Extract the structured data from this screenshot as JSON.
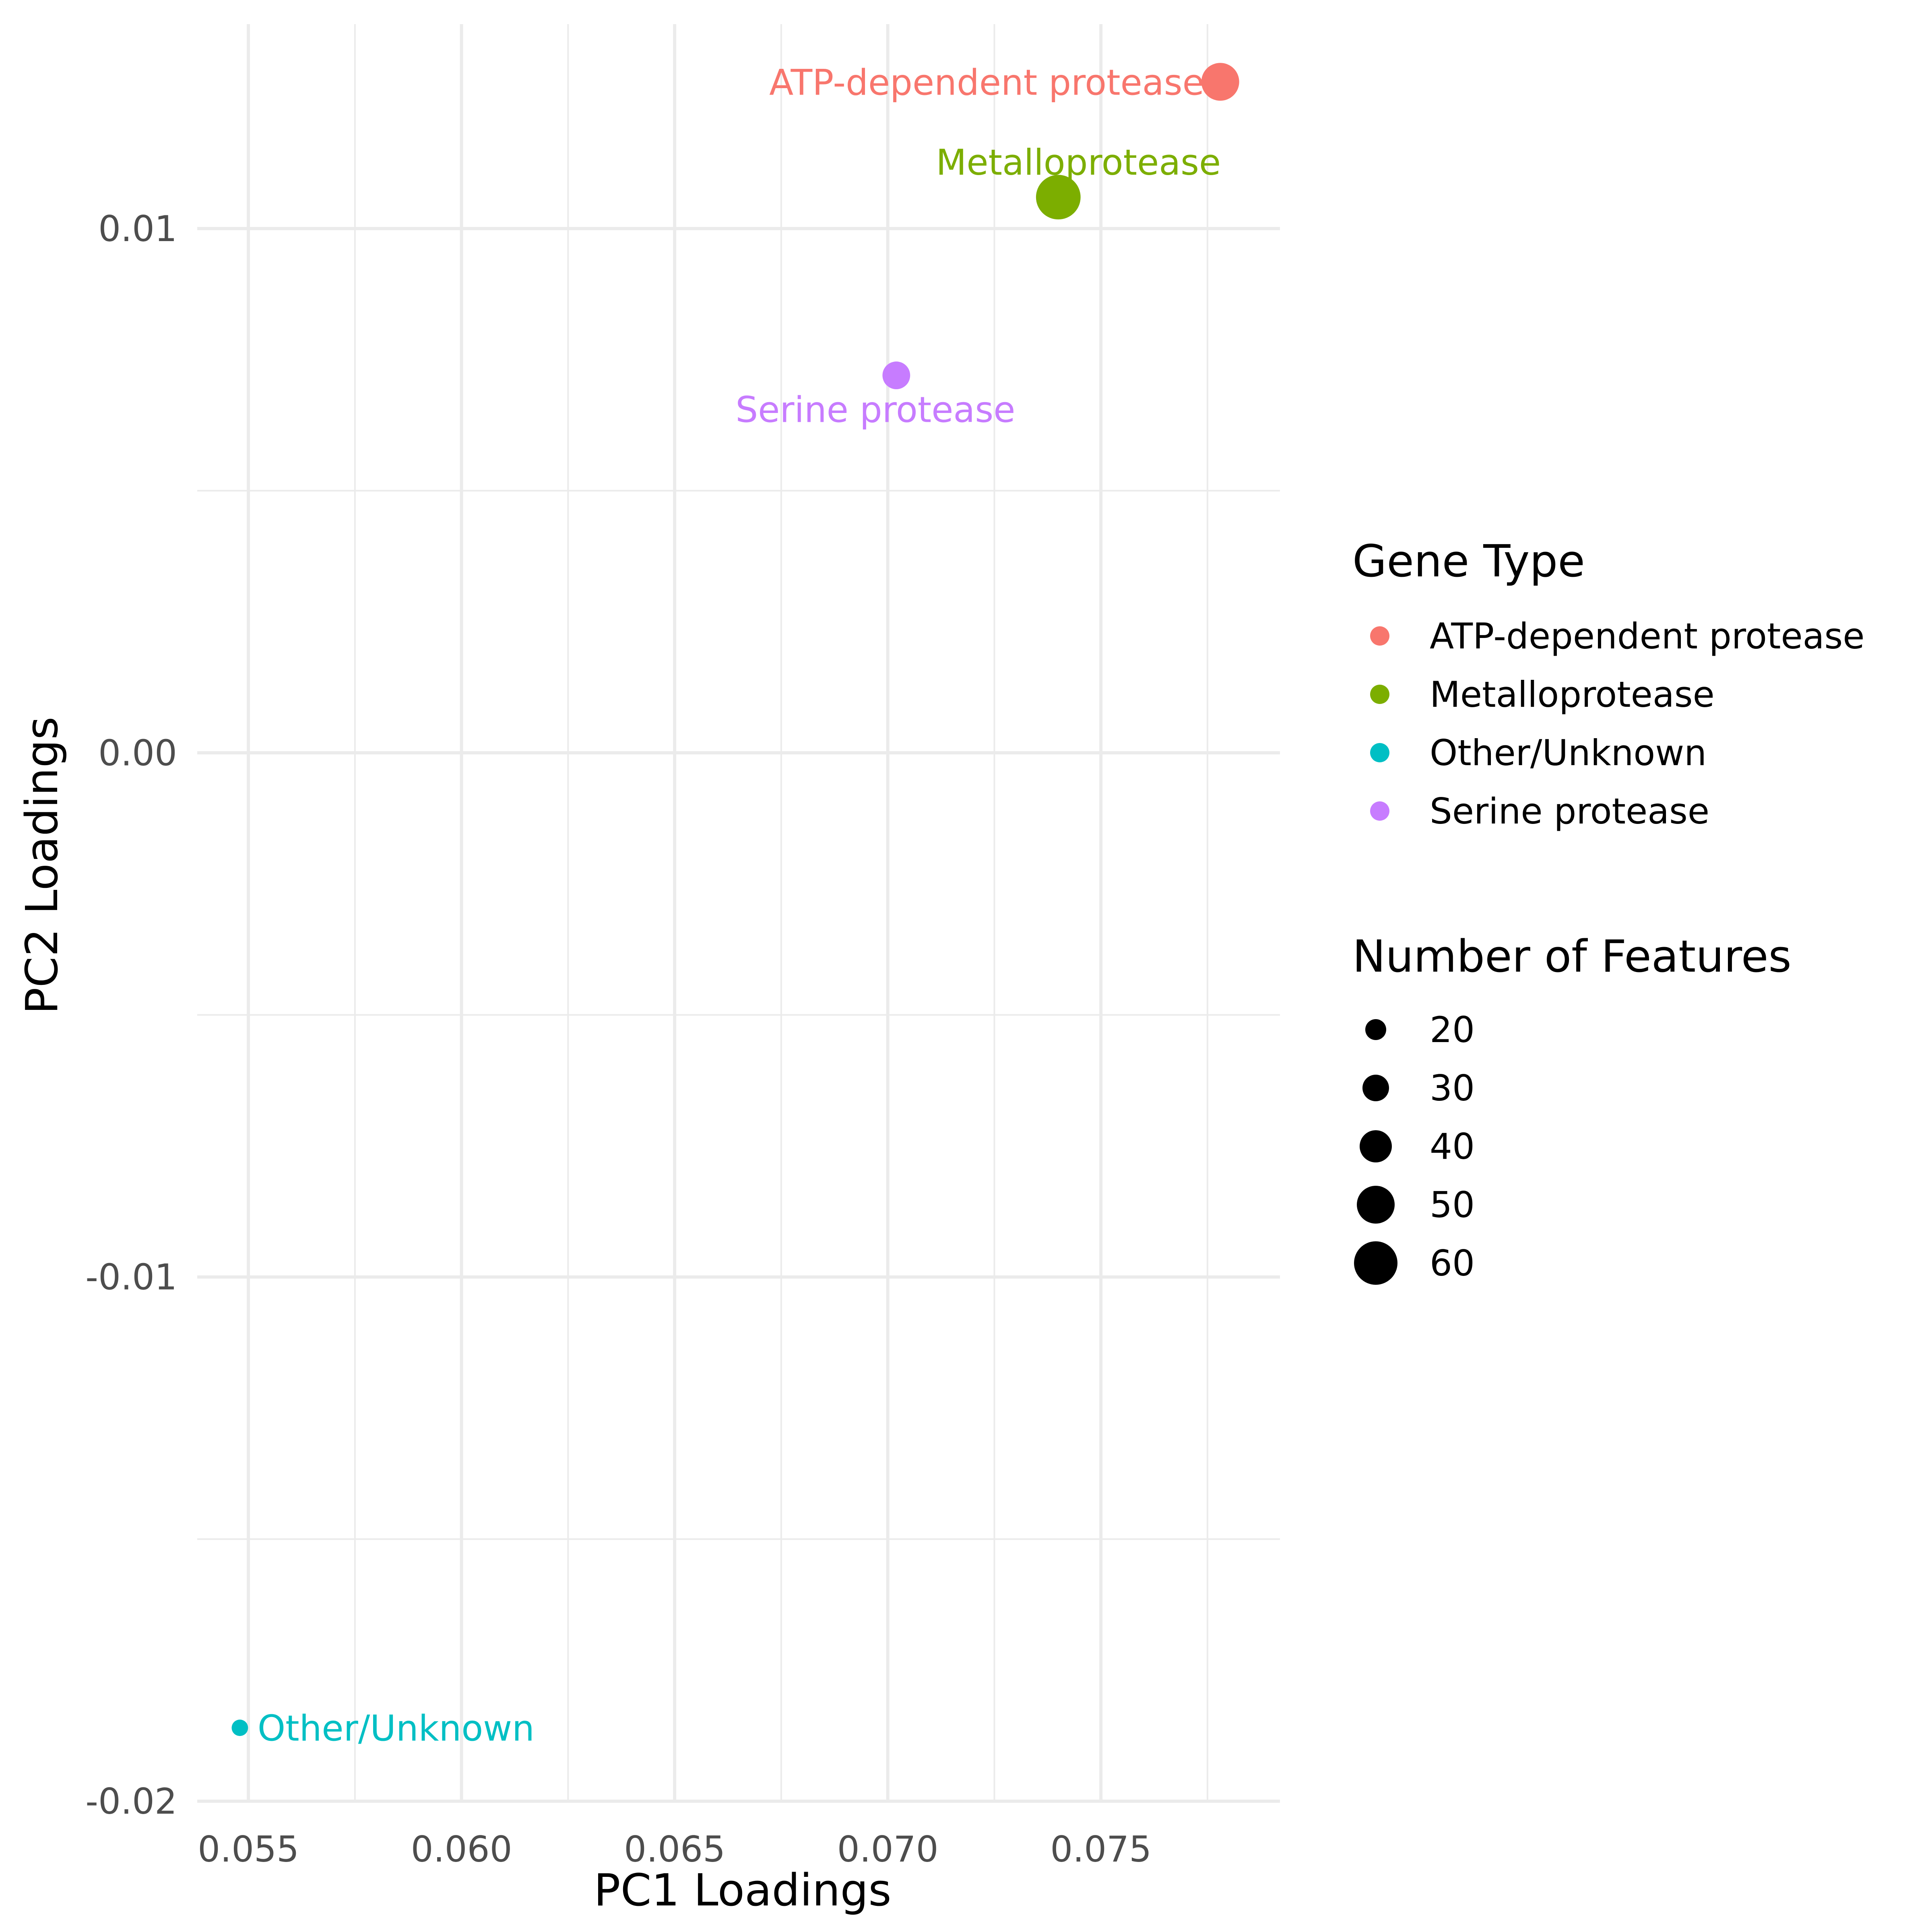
{
  "chart_data": {
    "type": "scatter",
    "xlabel": "PC1 Loadings",
    "ylabel": "PC2 Loadings",
    "xlim": [
      0.0538,
      0.0792
    ],
    "ylim": [
      -0.02,
      0.0139
    ],
    "x_ticks": [
      0.055,
      0.06,
      0.065,
      0.07,
      0.075
    ],
    "x_tick_labels": [
      "0.055",
      "0.060",
      "0.065",
      "0.070",
      "0.075"
    ],
    "y_ticks": [
      -0.02,
      -0.01,
      0.0,
      0.01
    ],
    "y_tick_labels": [
      "-0.02",
      "-0.01",
      "0.00",
      "0.01"
    ],
    "grid": true,
    "points": [
      {
        "label": "ATP-dependent protease",
        "x": 0.0778,
        "y": 0.0128,
        "size": 50,
        "color": "#F8766D"
      },
      {
        "label": "Metalloprotease",
        "x": 0.074,
        "y": 0.0106,
        "size": 62,
        "color": "#7CAE00"
      },
      {
        "label": "Serine protease",
        "x": 0.0702,
        "y": 0.0072,
        "size": 32,
        "color": "#C77CFF"
      },
      {
        "label": "Other/Unknown",
        "x": 0.0548,
        "y": -0.0186,
        "size": 12,
        "color": "#00BFC4"
      }
    ],
    "legend": {
      "position": "right",
      "color_title": "Gene Type",
      "color_entries": [
        {
          "label": "ATP-dependent protease",
          "color": "#F8766D"
        },
        {
          "label": "Metalloprotease",
          "color": "#7CAE00"
        },
        {
          "label": "Other/Unknown",
          "color": "#00BFC4"
        },
        {
          "label": "Serine protease",
          "color": "#C77CFF"
        }
      ],
      "size_title": "Number of Features",
      "size_entries": [
        {
          "label": "20",
          "size": 20
        },
        {
          "label": "30",
          "size": 30
        },
        {
          "label": "40",
          "size": 40
        },
        {
          "label": "50",
          "size": 50
        },
        {
          "label": "60",
          "size": 60
        }
      ]
    }
  }
}
